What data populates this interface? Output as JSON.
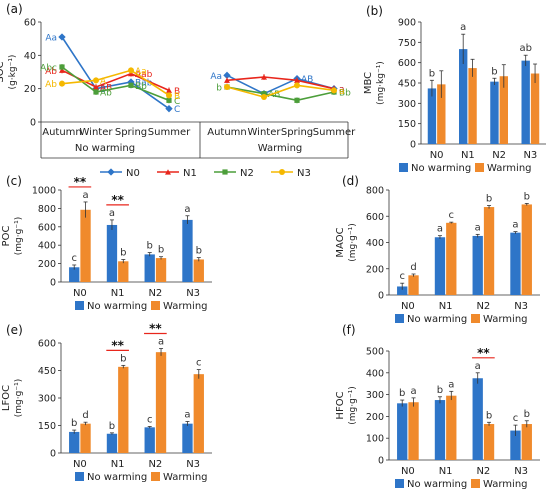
{
  "colors": {
    "no_warming": "#2E75C8",
    "warming": "#F08A2C",
    "N0": "#2E75C8",
    "N1": "#E8261C",
    "N2": "#4C9E3A",
    "N3": "#F5B800",
    "sig_line": "#E8261C",
    "letter": "#333333"
  },
  "legend_line": {
    "items": [
      "N0",
      "N1",
      "N2",
      "N3"
    ]
  },
  "legend_bar": {
    "items": [
      "No warming",
      "Warming"
    ]
  },
  "chart_data": [
    {
      "id": "a",
      "panel_label": "(a)",
      "type": "line",
      "ylabel": "SOC",
      "yunit": "(g·kg⁻¹)",
      "ylim": [
        0,
        60
      ],
      "yticks": [
        0,
        20,
        40,
        60
      ],
      "categories": [
        "Autumn",
        "Winter",
        "Spring",
        "Summer"
      ],
      "groups": [
        "No warming",
        "Warming"
      ],
      "series": [
        {
          "name": "N0",
          "no_warming": [
            51,
            20,
            24,
            8
          ],
          "warming": [
            28,
            17,
            26,
            20
          ],
          "letters_no_warming": [
            "Aa",
            "B",
            "Bab",
            "C"
          ],
          "letters_warming": [
            "Aa",
            "",
            "AB",
            "a"
          ]
        },
        {
          "name": "N1",
          "no_warming": [
            31,
            21,
            29,
            19
          ],
          "warming": [
            25,
            27,
            25,
            20
          ],
          "letters_no_warming": [
            "Ab",
            "AB",
            "Aab",
            "B"
          ],
          "letters_warming": [
            "",
            "",
            "",
            "a"
          ]
        },
        {
          "name": "N2",
          "no_warming": [
            33,
            18,
            22,
            13
          ],
          "warming": [
            21,
            17,
            13,
            18
          ],
          "letters_no_warming": [
            "Abc",
            "Ab",
            "Bb",
            "C"
          ],
          "letters_warming": [
            "b",
            "AB",
            "",
            "Bb"
          ]
        },
        {
          "name": "N3",
          "no_warming": [
            23,
            25,
            31,
            16
          ],
          "warming": [
            21,
            15,
            22,
            19
          ],
          "letters_no_warming": [
            "Ab",
            "A",
            "Aa",
            "B"
          ],
          "letters_warming": [
            "",
            "",
            "",
            "a"
          ]
        }
      ]
    },
    {
      "id": "b",
      "panel_label": "(b)",
      "type": "bar",
      "ylabel": "MBC",
      "yunit": "(mg·kg⁻¹)",
      "ylim": [
        0,
        900
      ],
      "yticks": [
        0,
        150,
        300,
        450,
        600,
        750,
        900
      ],
      "categories": [
        "N0",
        "N1",
        "N2",
        "N3"
      ],
      "series": [
        {
          "name": "No warming",
          "values": [
            410,
            700,
            460,
            615
          ],
          "errors": [
            60,
            110,
            25,
            40
          ],
          "letters": [
            "b",
            "a",
            "b",
            "ab"
          ]
        },
        {
          "name": "Warming",
          "values": [
            440,
            560,
            500,
            520
          ],
          "errors": [
            100,
            65,
            85,
            70
          ],
          "letters": [
            "",
            "",
            "",
            ""
          ]
        }
      ],
      "sig_pairs": []
    },
    {
      "id": "c",
      "panel_label": "(c)",
      "type": "bar",
      "ylabel": "POC",
      "yunit": "(mg·g⁻¹)",
      "ylim": [
        0,
        1000
      ],
      "yticks": [
        0,
        200,
        400,
        600,
        800,
        1000
      ],
      "categories": [
        "N0",
        "N1",
        "N2",
        "N3"
      ],
      "series": [
        {
          "name": "No warming",
          "values": [
            160,
            620,
            300,
            675
          ],
          "errors": [
            25,
            55,
            20,
            45
          ],
          "letters": [
            "c",
            "a",
            "b",
            "a"
          ]
        },
        {
          "name": "Warming",
          "values": [
            785,
            225,
            260,
            245
          ],
          "errors": [
            85,
            20,
            15,
            20
          ],
          "letters": [
            "a",
            "b",
            "b",
            "b"
          ]
        }
      ],
      "sig_pairs": [
        {
          "category": "N0",
          "label": "**"
        },
        {
          "category": "N1",
          "label": "**"
        }
      ]
    },
    {
      "id": "d",
      "panel_label": "(d)",
      "type": "bar",
      "ylabel": "MAOC",
      "yunit": "(mg·g⁻¹)",
      "ylim": [
        0,
        800
      ],
      "yticks": [
        0,
        200,
        400,
        600,
        800
      ],
      "categories": [
        "N0",
        "N1",
        "N2",
        "N3"
      ],
      "series": [
        {
          "name": "No warming",
          "values": [
            65,
            440,
            450,
            475
          ],
          "errors": [
            25,
            12,
            12,
            8
          ],
          "letters": [
            "c",
            "a",
            "a",
            "a"
          ]
        },
        {
          "name": "Warming",
          "values": [
            150,
            550,
            670,
            690
          ],
          "errors": [
            10,
            5,
            12,
            8
          ],
          "letters": [
            "d",
            "c",
            "b",
            "b"
          ]
        }
      ],
      "sig_pairs": []
    },
    {
      "id": "e",
      "panel_label": "(e)",
      "type": "bar",
      "ylabel": "LFOC",
      "yunit": "(mg·g⁻¹)",
      "ylim": [
        0,
        600
      ],
      "yticks": [
        0,
        150,
        300,
        450,
        600
      ],
      "categories": [
        "N0",
        "N1",
        "N2",
        "N3"
      ],
      "series": [
        {
          "name": "No warming",
          "values": [
            115,
            105,
            140,
            160
          ],
          "errors": [
            10,
            5,
            5,
            12
          ],
          "letters": [
            "b",
            "b",
            "c",
            "a"
          ]
        },
        {
          "name": "Warming",
          "values": [
            160,
            470,
            550,
            430
          ],
          "errors": [
            8,
            8,
            20,
            25
          ],
          "letters": [
            "d",
            "b",
            "a",
            "c"
          ]
        }
      ],
      "sig_pairs": [
        {
          "category": "N1",
          "label": "**"
        },
        {
          "category": "N2",
          "label": "**"
        }
      ]
    },
    {
      "id": "f",
      "panel_label": "(f)",
      "type": "bar",
      "ylabel": "HFOC",
      "yunit": "(mg·g⁻¹)",
      "ylim": [
        0,
        500
      ],
      "yticks": [
        0,
        100,
        200,
        300,
        400,
        500
      ],
      "categories": [
        "N0",
        "N1",
        "N2",
        "N3"
      ],
      "series": [
        {
          "name": "No warming",
          "values": [
            260,
            275,
            375,
            135
          ],
          "errors": [
            15,
            15,
            25,
            25
          ],
          "letters": [
            "b",
            "b",
            "a",
            "c"
          ]
        },
        {
          "name": "Warming",
          "values": [
            265,
            295,
            165,
            165
          ],
          "errors": [
            20,
            20,
            8,
            15
          ],
          "letters": [
            "a",
            "a",
            "b",
            "b"
          ]
        }
      ],
      "sig_pairs": [
        {
          "category": "N2",
          "label": "**"
        }
      ]
    }
  ]
}
